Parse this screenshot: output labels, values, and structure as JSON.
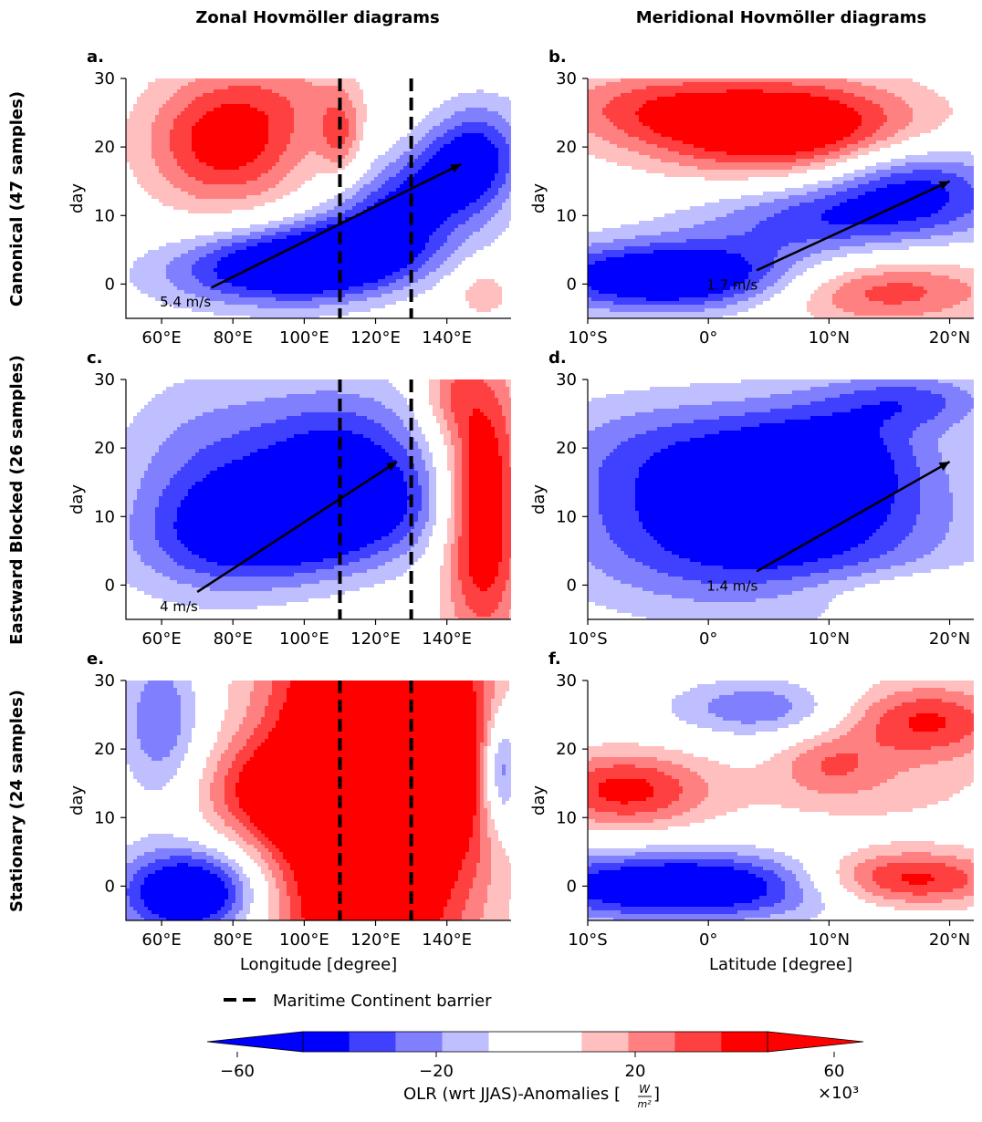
{
  "column_titles": [
    "Zonal Hovmöller diagrams",
    "Meridional Hovmöller diagrams"
  ],
  "row_titles": [
    "Canonical (47 samples)",
    "Eastward Blocked (26 samples)",
    "Stationary (24 samples)"
  ],
  "legend": {
    "label": "Maritime Continent barrier"
  },
  "colorbar": {
    "label": "OLR (wrt JJAS)-Anomalies [W/m²]",
    "label_main": "OLR (wrt JJAS)-Anomalies [",
    "unit_num": "W",
    "unit_den": "m²",
    "label_close": "]",
    "multiplier": "×10³",
    "ticks": [
      -60,
      -20,
      20,
      60
    ],
    "tick_labels": [
      "−60",
      "−20",
      "20",
      "60"
    ],
    "levels": [
      -70,
      -50,
      -40,
      -30,
      -20,
      -10,
      10,
      20,
      30,
      40,
      50,
      70
    ],
    "colors": [
      "#0000ff",
      "#4040ff",
      "#8080ff",
      "#bfbfff",
      "#ffffff",
      "#ffbfbf",
      "#ff8080",
      "#ff4040",
      "#ff0000"
    ]
  },
  "chart_data": [
    {
      "type": "heatmap",
      "panel": "a.",
      "row": 0,
      "col": 0,
      "kind": "zonal",
      "ylabel": "day",
      "xlabel": "",
      "xlim": [
        50,
        158
      ],
      "ylim": [
        -5,
        30
      ],
      "xticks": [
        60,
        80,
        100,
        120,
        140
      ],
      "xticklabels": [
        "60°E",
        "80°E",
        "100°E",
        "120°E",
        "140°E"
      ],
      "yticks": [
        0,
        10,
        20,
        30
      ],
      "yticklabels": [
        "0",
        "10",
        "20",
        "30"
      ],
      "barrier_x": [
        110,
        130
      ],
      "arrow": {
        "from": [
          74,
          -0.5
        ],
        "to": [
          144,
          17.5
        ]
      },
      "speed_label": "5.4 m/s",
      "speed_pos": [
        60,
        -2.5
      ],
      "blobs": [
        {
          "cx": 78,
          "cy": 21,
          "sx": 16,
          "sy": 7,
          "a": 48
        },
        {
          "cx": 98,
          "cy": 3,
          "sx": 24,
          "sy": 4,
          "a": -64,
          "rot": 12
        },
        {
          "cx": 130,
          "cy": 12,
          "sx": 14,
          "sy": 7,
          "a": -45,
          "rot": 15
        },
        {
          "cx": 148,
          "cy": 18,
          "sx": 9,
          "sy": 6,
          "a": -30
        },
        {
          "cx": 110,
          "cy": 22,
          "sx": 4,
          "sy": 4,
          "a": 26
        },
        {
          "cx": 150,
          "cy": -1,
          "sx": 6,
          "sy": 3,
          "a": 18
        },
        {
          "cx": 100,
          "cy": 28,
          "sx": 14,
          "sy": 5,
          "a": 12
        }
      ]
    },
    {
      "type": "heatmap",
      "panel": "b.",
      "row": 0,
      "col": 1,
      "kind": "meridional",
      "ylabel": "day",
      "xlabel": "",
      "xlim": [
        -10,
        22
      ],
      "ylim": [
        -5,
        30
      ],
      "xticks": [
        -10,
        0,
        10,
        20
      ],
      "xticklabels": [
        "10°S",
        "0°",
        "10°N",
        "20°N"
      ],
      "yticks": [
        0,
        10,
        20,
        30
      ],
      "yticklabels": [
        "0",
        "10",
        "20",
        "30"
      ],
      "barrier_x": [],
      "arrow": {
        "from": [
          4,
          2
        ],
        "to": [
          20,
          15
        ]
      },
      "speed_label": "1.7 m/s",
      "speed_pos": [
        0,
        0
      ],
      "blobs": [
        {
          "cx": 6,
          "cy": 23,
          "sx": 8,
          "sy": 5,
          "a": 62
        },
        {
          "cx": -6,
          "cy": 26,
          "sx": 6,
          "sy": 4,
          "a": 22
        },
        {
          "cx": -3,
          "cy": 1,
          "sx": 8,
          "sy": 3.5,
          "a": -64
        },
        {
          "cx": 12,
          "cy": 10,
          "sx": 9,
          "sy": 4,
          "a": -40,
          "rot": 12
        },
        {
          "cx": 17,
          "cy": 16,
          "sx": 5,
          "sy": 4,
          "a": -30
        },
        {
          "cx": 14,
          "cy": -1,
          "sx": 7,
          "sy": 3.5,
          "a": 38
        }
      ]
    },
    {
      "type": "heatmap",
      "panel": "c.",
      "row": 1,
      "col": 0,
      "kind": "zonal",
      "ylabel": "day",
      "xlabel": "",
      "xlim": [
        50,
        158
      ],
      "ylim": [
        -5,
        30
      ],
      "xticks": [
        60,
        80,
        100,
        120,
        140
      ],
      "xticklabels": [
        "60°E",
        "80°E",
        "100°E",
        "120°E",
        "140°E"
      ],
      "yticks": [
        0,
        10,
        20,
        30
      ],
      "yticklabels": [
        "0",
        "10",
        "20",
        "30"
      ],
      "barrier_x": [
        110,
        130
      ],
      "arrow": {
        "from": [
          70,
          -1
        ],
        "to": [
          126,
          18
        ]
      },
      "speed_label": "4 m/s",
      "speed_pos": [
        60,
        -3
      ],
      "blobs": [
        {
          "cx": 100,
          "cy": 9,
          "sx": 26,
          "sy": 6,
          "a": -58,
          "rot": 12
        },
        {
          "cx": 110,
          "cy": 20,
          "sx": 18,
          "sy": 7,
          "a": -36
        },
        {
          "cx": 72,
          "cy": 16,
          "sx": 18,
          "sy": 10,
          "a": -25
        },
        {
          "cx": 150,
          "cy": 12,
          "sx": 8,
          "sy": 14,
          "a": 62
        },
        {
          "cx": 140,
          "cy": 28,
          "sx": 6,
          "sy": 4,
          "a": 18
        }
      ]
    },
    {
      "type": "heatmap",
      "panel": "d.",
      "row": 1,
      "col": 1,
      "kind": "meridional",
      "ylabel": "day",
      "xlabel": "",
      "xlim": [
        -10,
        22
      ],
      "ylim": [
        -5,
        30
      ],
      "xticks": [
        -10,
        0,
        10,
        20
      ],
      "xticklabels": [
        "10°S",
        "0°",
        "10°N",
        "20°N"
      ],
      "yticks": [
        0,
        10,
        20,
        30
      ],
      "yticklabels": [
        "0",
        "10",
        "20",
        "30"
      ],
      "barrier_x": [],
      "arrow": {
        "from": [
          4,
          2
        ],
        "to": [
          20,
          18
        ]
      },
      "speed_label": "1.4 m/s",
      "speed_pos": [
        0,
        0
      ],
      "blobs": [
        {
          "cx": 4,
          "cy": 8,
          "sx": 11,
          "sy": 8,
          "a": -52
        },
        {
          "cx": 10,
          "cy": 19,
          "sx": 6,
          "sy": 6,
          "a": -36
        },
        {
          "cx": -3,
          "cy": 20,
          "sx": 8,
          "sy": 6,
          "a": -24
        },
        {
          "cx": 17,
          "cy": 27,
          "sx": 5,
          "sy": 3,
          "a": -28
        },
        {
          "cx": 16,
          "cy": -1,
          "sx": 7,
          "sy": 2.5,
          "a": 15
        }
      ]
    },
    {
      "type": "heatmap",
      "panel": "e.",
      "row": 2,
      "col": 0,
      "kind": "zonal",
      "ylabel": "day",
      "xlabel": "Longitude [degree]",
      "xlim": [
        50,
        158
      ],
      "ylim": [
        -5,
        30
      ],
      "xticks": [
        60,
        80,
        100,
        120,
        140
      ],
      "xticklabels": [
        "60°E",
        "80°E",
        "100°E",
        "120°E",
        "140°E"
      ],
      "yticks": [
        0,
        10,
        20,
        30
      ],
      "yticklabels": [
        "0",
        "10",
        "20",
        "30"
      ],
      "barrier_x": [
        110,
        130
      ],
      "arrow": null,
      "speed_label": "",
      "speed_pos": [
        0,
        0
      ],
      "blobs": [
        {
          "cx": 118,
          "cy": 14,
          "sx": 20,
          "sy": 24,
          "a": 90
        },
        {
          "cx": 90,
          "cy": 14,
          "sx": 14,
          "sy": 5,
          "a": 30
        },
        {
          "cx": 68,
          "cy": -1,
          "sx": 14,
          "sy": 4.5,
          "a": -66
        },
        {
          "cx": 60,
          "cy": 24,
          "sx": 8,
          "sy": 8,
          "a": -30
        },
        {
          "cx": 155,
          "cy": 17,
          "sx": 4,
          "sy": 6,
          "a": -45
        },
        {
          "cx": 146,
          "cy": 20,
          "sx": 7,
          "sy": 10,
          "a": 25
        }
      ]
    },
    {
      "type": "heatmap",
      "panel": "f.",
      "row": 2,
      "col": 1,
      "kind": "meridional",
      "ylabel": "day",
      "xlabel": "Latitude [degree]",
      "xlim": [
        -10,
        22
      ],
      "ylim": [
        -5,
        30
      ],
      "xticks": [
        -10,
        0,
        10,
        20
      ],
      "xticklabels": [
        "10°S",
        "0°",
        "10°N",
        "20°N"
      ],
      "yticks": [
        0,
        10,
        20,
        30
      ],
      "yticklabels": [
        "0",
        "10",
        "20",
        "30"
      ],
      "barrier_x": [],
      "arrow": null,
      "speed_label": "",
      "speed_pos": [
        0,
        0
      ],
      "blobs": [
        {
          "cx": -2,
          "cy": 0,
          "sx": 10,
          "sy": 3.5,
          "a": -62
        },
        {
          "cx": 16,
          "cy": 1,
          "sx": 6,
          "sy": 3,
          "a": 52
        },
        {
          "cx": -7,
          "cy": 14,
          "sx": 5,
          "sy": 4,
          "a": 44
        },
        {
          "cx": 18,
          "cy": 24,
          "sx": 5,
          "sy": 4,
          "a": 42
        },
        {
          "cx": 4,
          "cy": 26,
          "sx": 5,
          "sy": 3,
          "a": -28
        },
        {
          "cx": 10,
          "cy": 18,
          "sx": 3,
          "sy": 3,
          "a": 20
        },
        {
          "cx": 13,
          "cy": 14,
          "sx": 8,
          "sy": 4,
          "a": 14
        }
      ]
    }
  ]
}
